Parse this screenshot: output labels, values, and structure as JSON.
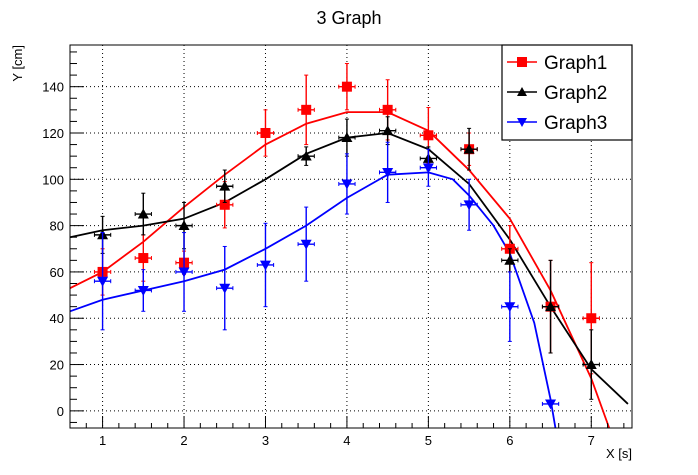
{
  "chart_data": {
    "type": "scatter",
    "title": "3 Graph",
    "xlabel": "X [s]",
    "ylabel": "Y [cm]",
    "xlim": [
      0.6,
      7.5
    ],
    "ylim": [
      -7.4,
      158
    ],
    "xticks": [
      1,
      2,
      3,
      4,
      5,
      6,
      7
    ],
    "yticks": [
      0,
      20,
      40,
      60,
      80,
      100,
      120,
      140
    ],
    "grid": true,
    "legend": "top-right",
    "series": [
      {
        "name": "Graph1",
        "color": "#ff0000",
        "marker": "square",
        "x": [
          1,
          1.5,
          2,
          2.5,
          3,
          3.5,
          4,
          4.5,
          5,
          5.5,
          6,
          6.5,
          7
        ],
        "y": [
          60,
          66,
          64,
          89,
          120,
          130,
          140,
          130,
          119,
          113,
          70,
          45,
          40
        ],
        "ex": [
          0.1,
          0.1,
          0.1,
          0.1,
          0.1,
          0.1,
          0.1,
          0.1,
          0.1,
          0.1,
          0.1,
          0.1,
          0.1
        ],
        "ey": [
          10,
          10,
          5,
          10,
          10,
          15,
          10,
          13,
          12,
          7,
          10,
          20,
          24
        ],
        "fit": [
          [
            0.6,
            53
          ],
          [
            1,
            60
          ],
          [
            1.5,
            73
          ],
          [
            2,
            88
          ],
          [
            2.5,
            102
          ],
          [
            3,
            115
          ],
          [
            3.5,
            124
          ],
          [
            4,
            129
          ],
          [
            4.5,
            129
          ],
          [
            5,
            121
          ],
          [
            5.5,
            104
          ],
          [
            6,
            83
          ],
          [
            6.5,
            52
          ],
          [
            7,
            14
          ],
          [
            7.22,
            -7.4
          ]
        ]
      },
      {
        "name": "Graph2",
        "color": "#000000",
        "marker": "triangle-up",
        "x": [
          1,
          1.5,
          2,
          2.5,
          3.5,
          4,
          4.5,
          5,
          5.5,
          6,
          6.5,
          7
        ],
        "y": [
          76,
          85,
          80,
          97,
          110,
          118,
          121,
          109,
          113,
          65,
          45,
          20
        ],
        "ex": [
          0.1,
          0.1,
          0.1,
          0.1,
          0.1,
          0.1,
          0.1,
          0.1,
          0.1,
          0.1,
          0.1,
          0.1
        ],
        "ey": [
          8,
          9,
          10,
          7,
          4,
          8,
          6,
          5,
          9,
          5,
          20,
          15
        ],
        "fit": [
          [
            0.6,
            75
          ],
          [
            1,
            78
          ],
          [
            1.5,
            80
          ],
          [
            2,
            83
          ],
          [
            2.5,
            90
          ],
          [
            3,
            100
          ],
          [
            3.5,
            111
          ],
          [
            4,
            118
          ],
          [
            4.5,
            120
          ],
          [
            5,
            113
          ],
          [
            5.5,
            98
          ],
          [
            6,
            74
          ],
          [
            6.5,
            45
          ],
          [
            7,
            18
          ],
          [
            7.45,
            3
          ]
        ]
      },
      {
        "name": "Graph3",
        "color": "#0000ff",
        "marker": "triangle-down",
        "x": [
          1,
          1.5,
          2,
          2.5,
          3,
          3.5,
          4,
          4.5,
          5,
          5.5,
          6,
          6.5
        ],
        "y": [
          56,
          52,
          60,
          53,
          63,
          72,
          98,
          103,
          105,
          89,
          45,
          3
        ],
        "ex": [
          0.1,
          0.1,
          0.1,
          0.1,
          0.1,
          0.1,
          0.1,
          0.1,
          0.1,
          0.1,
          0.1,
          0.1
        ],
        "ey": [
          21,
          9,
          17,
          18,
          18,
          16,
          13,
          13,
          8,
          11,
          15,
          0
        ],
        "fit": [
          [
            0.6,
            43
          ],
          [
            1,
            48
          ],
          [
            1.5,
            52
          ],
          [
            2,
            56
          ],
          [
            2.5,
            61
          ],
          [
            3,
            70
          ],
          [
            3.5,
            80
          ],
          [
            4,
            92
          ],
          [
            4.5,
            102
          ],
          [
            5,
            103
          ],
          [
            5.3,
            100
          ],
          [
            5.5,
            93
          ],
          [
            5.8,
            80
          ],
          [
            6,
            68
          ],
          [
            6.3,
            38
          ],
          [
            6.5,
            5
          ],
          [
            6.56,
            -7.4
          ]
        ]
      }
    ]
  }
}
